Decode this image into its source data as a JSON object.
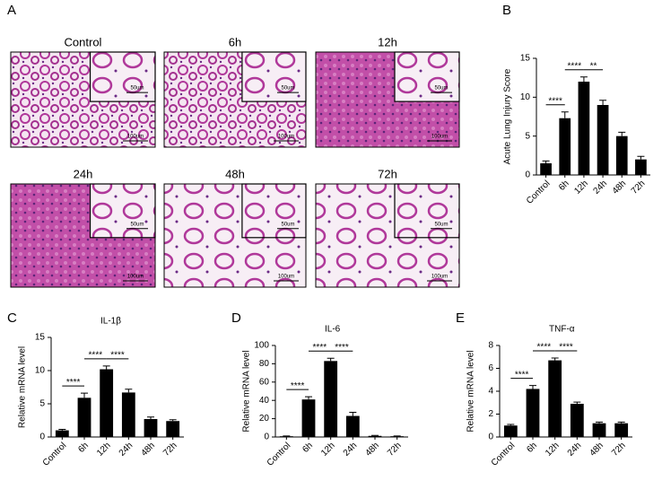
{
  "panel_labels": [
    "A",
    "B",
    "C",
    "D",
    "E"
  ],
  "histology": {
    "panels": [
      {
        "label": "Control",
        "scale_bar": "100um",
        "inset_scale_bar": "50um"
      },
      {
        "label": "6h",
        "scale_bar": "100um",
        "inset_scale_bar": "50um"
      },
      {
        "label": "12h",
        "scale_bar": "100um",
        "inset_scale_bar": "50um"
      },
      {
        "label": "24h",
        "scale_bar": "100um",
        "inset_scale_bar": "50um"
      },
      {
        "label": "48h",
        "scale_bar": "100um",
        "inset_scale_bar": "50um"
      },
      {
        "label": "72h",
        "scale_bar": "100um",
        "inset_scale_bar": "50um"
      }
    ]
  },
  "chart_data": [
    {
      "type": "bar",
      "ylabel": "Acute Lung Injury Score",
      "color": "#000000",
      "categories": [
        "Control",
        "6h",
        "12h",
        "24h",
        "48h",
        "72h"
      ],
      "values": [
        1.5,
        7.3,
        12,
        9,
        5,
        2
      ],
      "errors": [
        0.3,
        0.8,
        0.6,
        0.6,
        0.5,
        0.4
      ],
      "ylim": [
        0,
        15
      ],
      "yticks": [
        0,
        5,
        10,
        15
      ],
      "annotations": [
        {
          "label": "****",
          "between": [
            "Control",
            "6h"
          ]
        },
        {
          "label": "****",
          "between": [
            "6h",
            "12h"
          ]
        },
        {
          "label": "**",
          "between": [
            "12h",
            "24h"
          ]
        }
      ]
    },
    {
      "type": "bar",
      "title": "IL-1β",
      "ylabel": "Relative mRNA level",
      "color": "#000000",
      "categories": [
        "Control",
        "6h",
        "12h",
        "24h",
        "48h",
        "72h"
      ],
      "values": [
        1.0,
        5.9,
        10.2,
        6.7,
        2.7,
        2.4
      ],
      "errors": [
        0.15,
        0.7,
        0.5,
        0.5,
        0.3,
        0.2
      ],
      "ylim": [
        0,
        15
      ],
      "yticks": [
        0,
        5,
        10,
        15
      ],
      "annotations": [
        {
          "label": "****",
          "between": [
            "Control",
            "6h"
          ]
        },
        {
          "label": "****",
          "between": [
            "6h",
            "12h"
          ]
        },
        {
          "label": "****",
          "between": [
            "12h",
            "24h"
          ]
        }
      ]
    },
    {
      "type": "bar",
      "title": "IL-6",
      "ylabel": "Relative mRNA level",
      "color": "#000000",
      "categories": [
        "Control",
        "6h",
        "12h",
        "24h",
        "48h",
        "72h"
      ],
      "values": [
        0.8,
        41,
        83,
        23,
        1.2,
        0.8
      ],
      "errors": [
        0.3,
        3,
        3,
        4,
        0.5,
        0.3
      ],
      "ylim": [
        0,
        100
      ],
      "yticks": [
        0,
        20,
        40,
        60,
        80,
        100
      ],
      "annotations": [
        {
          "label": "****",
          "between": [
            "Control",
            "6h"
          ]
        },
        {
          "label": "****",
          "between": [
            "6h",
            "12h"
          ]
        },
        {
          "label": "****",
          "between": [
            "12h",
            "24h"
          ]
        }
      ]
    },
    {
      "type": "bar",
      "title": "TNF-α",
      "ylabel": "Relative mRNA level",
      "color": "#000000",
      "categories": [
        "Control",
        "6h",
        "12h",
        "24h",
        "48h",
        "72h"
      ],
      "values": [
        1.0,
        4.2,
        6.7,
        2.9,
        1.2,
        1.2
      ],
      "errors": [
        0.1,
        0.3,
        0.2,
        0.15,
        0.1,
        0.1
      ],
      "ylim": [
        0,
        8
      ],
      "yticks": [
        0,
        2,
        4,
        6,
        8
      ],
      "annotations": [
        {
          "label": "****",
          "between": [
            "Control",
            "6h"
          ]
        },
        {
          "label": "****",
          "between": [
            "6h",
            "12h"
          ]
        },
        {
          "label": "****",
          "between": [
            "12h",
            "24h"
          ]
        }
      ]
    }
  ]
}
